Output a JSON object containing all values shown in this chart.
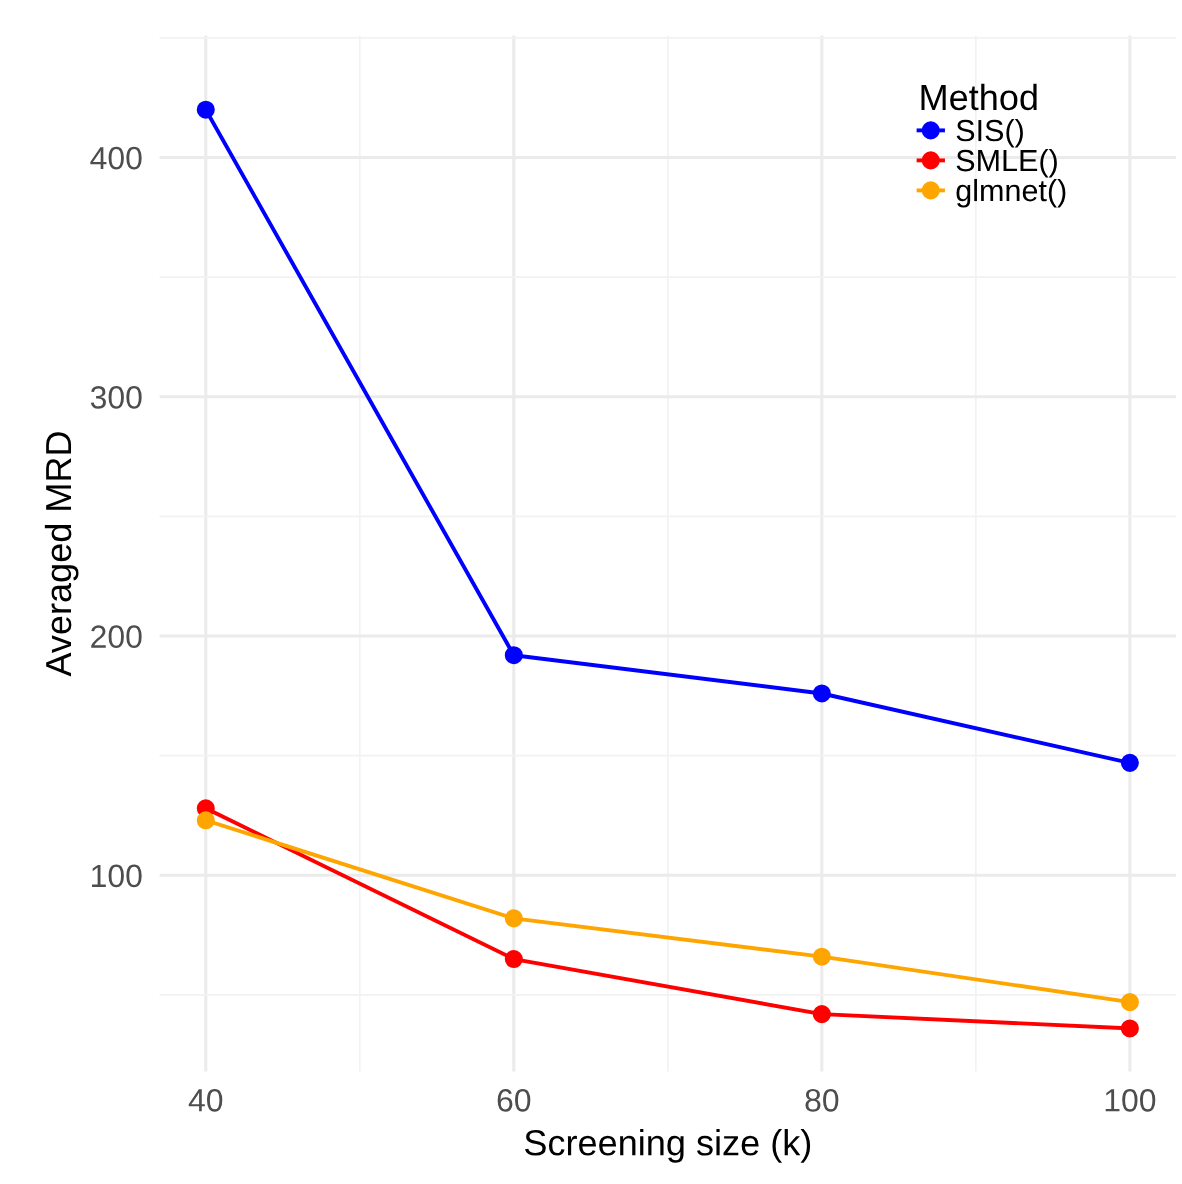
{
  "chart_data": {
    "type": "line",
    "xlabel": "Screening size (k)",
    "ylabel": "Averaged MRD",
    "legend_title": "Method",
    "x": [
      40,
      60,
      80,
      100
    ],
    "series": [
      {
        "name": "SIS()",
        "color": "#0000ff",
        "values": [
          420,
          192,
          176,
          147
        ]
      },
      {
        "name": "SMLE()",
        "color": "#ff0000",
        "values": [
          128,
          65,
          42,
          36
        ]
      },
      {
        "name": "glmnet()",
        "color": "#ffa500",
        "values": [
          123,
          82,
          66,
          47
        ]
      }
    ],
    "xlim": [
      37,
      103
    ],
    "ylim": [
      18,
      451
    ],
    "xticks": [
      40,
      60,
      80,
      100
    ],
    "yticks": [
      100,
      200,
      300,
      400
    ],
    "grid": true,
    "legend": "top right",
    "marker": "circle",
    "line_style": "solid"
  }
}
